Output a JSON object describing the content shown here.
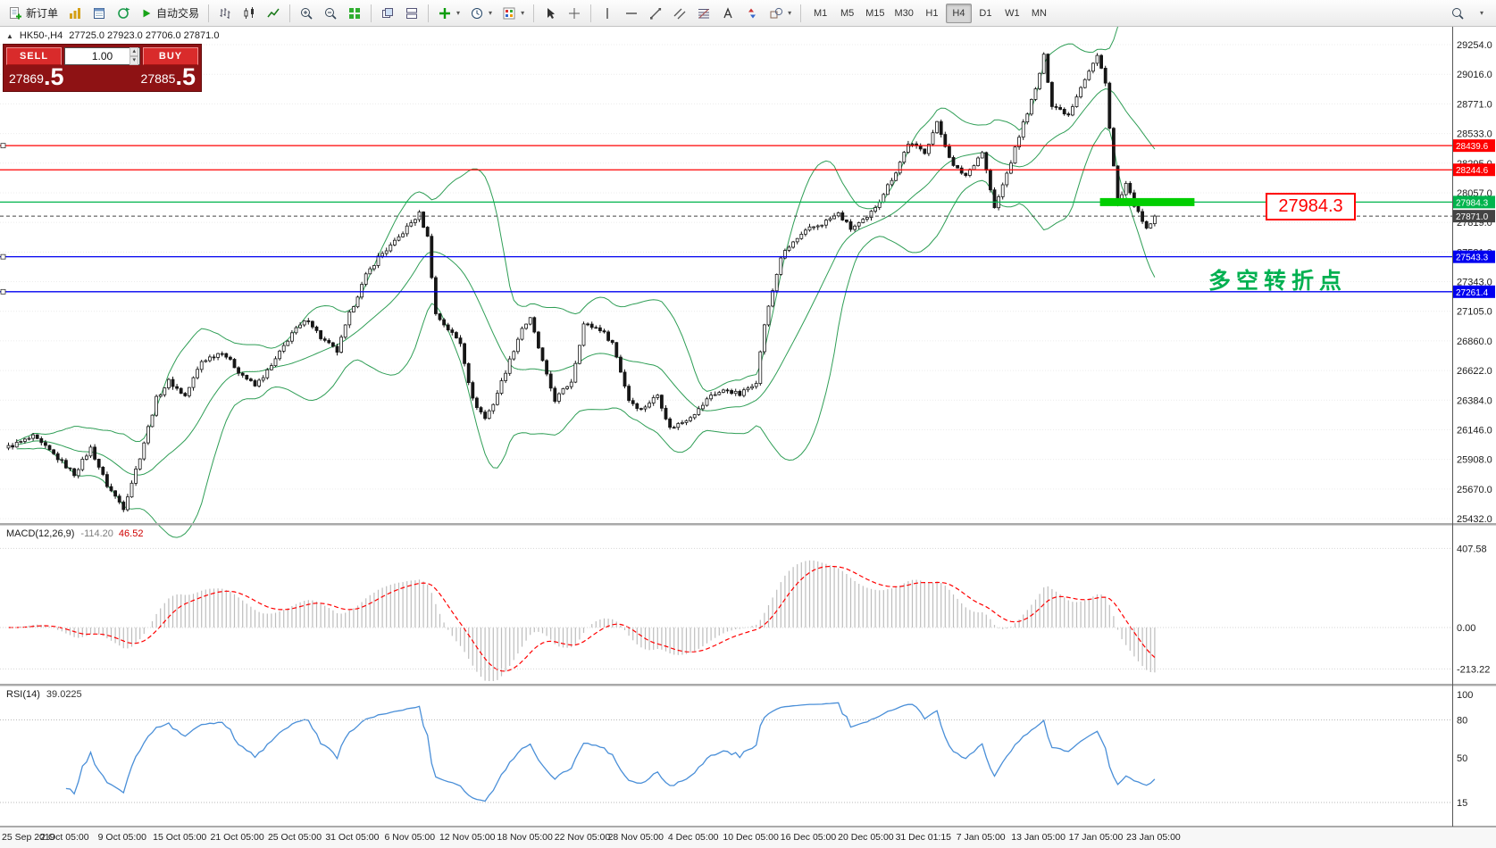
{
  "colors": {
    "candle_up": "#ffffff",
    "candle_down": "#161616",
    "candle_border": "#161616",
    "bollinger": "#2f9e56",
    "macd_histogram": "#bdbdbd",
    "macd_signal": "#ff0000",
    "rsi_line": "#4a8fd8",
    "highlight_green": "#00ce00",
    "grid": "#ececec",
    "axis_text": "#1c1c1c"
  },
  "toolbar": {
    "new_order_label": "新订单",
    "auto_trading_label": "自动交易",
    "timeframes": [
      "M1",
      "M5",
      "M15",
      "M30",
      "H1",
      "H4",
      "D1",
      "W1",
      "MN"
    ],
    "active_timeframe": "H4"
  },
  "chart": {
    "symbol": "HK50-,H4",
    "ohlc": "27725.0 27923.0 27706.0 27871.0"
  },
  "trade_panel": {
    "sell_label": "SELL",
    "buy_label": "BUY",
    "volume": "1.00",
    "sell_price_main": "27869",
    "sell_price_big": ".5",
    "buy_price_main": "27885",
    "buy_price_big": ".5"
  },
  "price_axis": {
    "labels": [
      "29254.0",
      "29016.0",
      "28771.0",
      "28533.0",
      "28295.0",
      "28057.0",
      "27819.0",
      "27581.0",
      "27343.0",
      "27105.0",
      "26860.0",
      "26622.0",
      "26384.0",
      "26146.0",
      "25908.0",
      "25670.0",
      "25432.0"
    ]
  },
  "levels": [
    {
      "price": 28439.6,
      "label": "28439.6",
      "color": "#fe0000",
      "handle": true,
      "current": false
    },
    {
      "price": 28244.6,
      "label": "28244.6",
      "color": "#fe0000",
      "handle": false,
      "current": false
    },
    {
      "price": 27984.3,
      "label": "27984.3",
      "color": "#00b44c",
      "handle": false,
      "current": false
    },
    {
      "price": 27871.0,
      "label": "27871.0",
      "color": "#444444",
      "handle": false,
      "current": true
    },
    {
      "price": 27543.3,
      "label": "27543.3",
      "color": "#0000f0",
      "handle": true,
      "current": false
    },
    {
      "price": 27261.4,
      "label": "27261.4",
      "color": "#0000f0",
      "handle": true,
      "current": false
    }
  ],
  "annotations": {
    "price_box": {
      "text": "27984.3"
    },
    "note": {
      "text": "多空转折点"
    },
    "highlight": {
      "price": 27984.3,
      "from_bar": 266,
      "to_bar": 289
    }
  },
  "macd": {
    "name": "MACD(12,26,9)",
    "value_main": "-114.20",
    "value_signal": "46.52",
    "axis": [
      {
        "value": 407.58,
        "label": "407.58"
      },
      {
        "value": 0,
        "label": "0.00"
      },
      {
        "value": -213.22,
        "label": "-213.22"
      }
    ],
    "params": {
      "fast": 12,
      "slow": 26,
      "signal": 9
    }
  },
  "rsi": {
    "name": "RSI(14)",
    "value": "39.0225",
    "axis": [
      {
        "value": 100,
        "label": "100"
      },
      {
        "value": 80,
        "label": "80"
      },
      {
        "value": 50,
        "label": "50"
      },
      {
        "value": 15,
        "label": "15"
      }
    ],
    "level_lines": [
      80,
      15
    ],
    "period": 14
  },
  "time_axis": {
    "labels": [
      "25 Sep 2019",
      "2 Oct 05:00",
      "9 Oct 05:00",
      "15 Oct 05:00",
      "21 Oct 05:00",
      "25 Oct 05:00",
      "31 Oct 05:00",
      "6 Nov 05:00",
      "12 Nov 05:00",
      "18 Nov 05:00",
      "22 Nov 05:00",
      "28 Nov 05:00",
      "4 Dec 05:00",
      "10 Dec 05:00",
      "16 Dec 05:00",
      "20 Dec 05:00",
      "31 Dec 01:15",
      "7 Jan 05:00",
      "13 Jan 05:00",
      "17 Jan 05:00",
      "23 Jan 05:00"
    ]
  },
  "chart_data": {
    "type": "candlestick",
    "symbol": "HK50-",
    "timeframe": "H4",
    "bars_count": 280,
    "price_range": {
      "min": 25403,
      "max": 29398
    },
    "overlays": [
      "Bollinger Bands (20,2)"
    ],
    "sub_indicators": [
      "MACD(12,26,9)",
      "RSI(14)"
    ],
    "close_waypoints": [
      [
        0,
        26010
      ],
      [
        6,
        26090
      ],
      [
        11,
        25950
      ],
      [
        16,
        25790
      ],
      [
        20,
        26000
      ],
      [
        24,
        25700
      ],
      [
        28,
        25520
      ],
      [
        32,
        25930
      ],
      [
        36,
        26400
      ],
      [
        39,
        26540
      ],
      [
        43,
        26420
      ],
      [
        47,
        26700
      ],
      [
        52,
        26780
      ],
      [
        56,
        26620
      ],
      [
        60,
        26500
      ],
      [
        64,
        26660
      ],
      [
        69,
        26930
      ],
      [
        73,
        27040
      ],
      [
        76,
        26890
      ],
      [
        80,
        26780
      ],
      [
        83,
        27080
      ],
      [
        87,
        27390
      ],
      [
        90,
        27540
      ],
      [
        94,
        27660
      ],
      [
        97,
        27780
      ],
      [
        100,
        27890
      ],
      [
        102,
        27700
      ],
      [
        104,
        27080
      ],
      [
        107,
        26960
      ],
      [
        110,
        26850
      ],
      [
        113,
        26390
      ],
      [
        116,
        26240
      ],
      [
        118,
        26360
      ],
      [
        121,
        26620
      ],
      [
        125,
        26970
      ],
      [
        127,
        27040
      ],
      [
        131,
        26580
      ],
      [
        133,
        26390
      ],
      [
        137,
        26540
      ],
      [
        140,
        27000
      ],
      [
        144,
        26960
      ],
      [
        147,
        26850
      ],
      [
        151,
        26390
      ],
      [
        154,
        26310
      ],
      [
        158,
        26430
      ],
      [
        161,
        26160
      ],
      [
        164,
        26210
      ],
      [
        168,
        26310
      ],
      [
        171,
        26430
      ],
      [
        175,
        26470
      ],
      [
        178,
        26430
      ],
      [
        182,
        26540
      ],
      [
        184,
        27000
      ],
      [
        188,
        27540
      ],
      [
        191,
        27660
      ],
      [
        195,
        27770
      ],
      [
        198,
        27810
      ],
      [
        202,
        27890
      ],
      [
        205,
        27770
      ],
      [
        209,
        27850
      ],
      [
        212,
        28000
      ],
      [
        216,
        28230
      ],
      [
        219,
        28460
      ],
      [
        223,
        28390
      ],
      [
        226,
        28620
      ],
      [
        230,
        28270
      ],
      [
        233,
        28200
      ],
      [
        237,
        28390
      ],
      [
        240,
        27930
      ],
      [
        244,
        28310
      ],
      [
        247,
        28620
      ],
      [
        250,
        28890
      ],
      [
        252,
        29160
      ],
      [
        254,
        28770
      ],
      [
        258,
        28690
      ],
      [
        261,
        28920
      ],
      [
        265,
        29160
      ],
      [
        267,
        28960
      ],
      [
        268,
        28580
      ],
      [
        270,
        27960
      ],
      [
        272,
        28120
      ],
      [
        275,
        27890
      ],
      [
        277,
        27760
      ],
      [
        279,
        27871
      ]
    ]
  }
}
